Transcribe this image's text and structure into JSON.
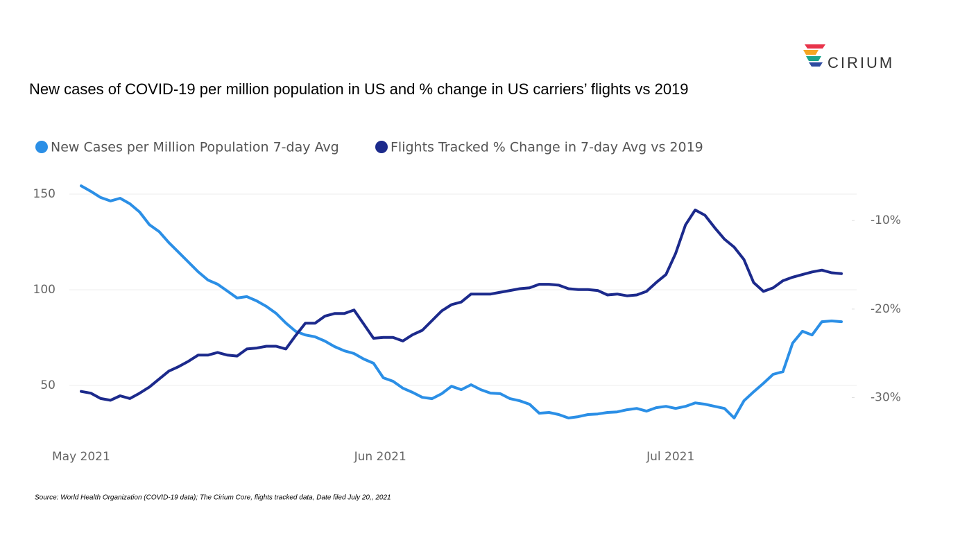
{
  "brand": "CIRIUM",
  "source": "Source: World Health Organization (COVID-19 data); The Cirium Core, flights tracked data, Date filed July 20,, 2021",
  "chart_data": {
    "type": "line",
    "title": "New cases of COVID-19 per million population in US and % change in US carriers’ flights vs 2019",
    "categories": [
      "May 2021",
      null,
      null,
      null,
      null,
      null,
      null,
      null,
      null,
      null,
      null,
      null,
      null,
      null,
      null,
      null,
      null,
      null,
      null,
      null,
      null,
      null,
      null,
      null,
      null,
      null,
      null,
      null,
      null,
      null,
      null,
      "Jun 2021",
      null,
      null,
      null,
      null,
      null,
      null,
      null,
      null,
      null,
      null,
      null,
      null,
      null,
      null,
      null,
      null,
      null,
      null,
      null,
      null,
      null,
      null,
      null,
      null,
      null,
      null,
      null,
      null,
      null,
      "Jul 2021",
      null,
      null,
      null,
      null,
      null,
      null,
      null,
      null,
      null,
      null,
      null,
      null,
      null,
      null,
      null,
      null,
      null
    ],
    "series": [
      {
        "name": "New Cases per Million Population 7-day Avg",
        "color": "#2b8fe6",
        "axis": "y",
        "values": [
          154.3,
          151.4,
          148.2,
          146.4,
          147.8,
          144.9,
          140.6,
          134,
          130.4,
          124.6,
          119.6,
          114.5,
          109.4,
          105.1,
          102.9,
          99.3,
          95.7,
          96.4,
          94.2,
          91.3,
          87.7,
          82.6,
          78.3,
          76.4,
          75.4,
          73.2,
          70.3,
          68.1,
          66.7,
          63.8,
          61.6,
          54,
          52.2,
          48.6,
          46.4,
          43.8,
          43.1,
          45.7,
          49.6,
          47.8,
          50.4,
          47.8,
          46,
          45.7,
          43.1,
          42,
          40.2,
          35.5,
          35.9,
          34.8,
          33,
          33.7,
          34.8,
          35.1,
          35.9,
          36.2,
          37.3,
          38,
          36.6,
          38.4,
          39.1,
          38,
          39.1,
          40.9,
          40.2,
          39.1,
          38,
          33,
          42,
          46.7,
          51.1,
          55.8,
          57.2,
          72.1,
          78.3,
          76.4,
          83.3,
          83.7,
          83.3
        ]
      },
      {
        "name": "Flights Tracked % Change in 7-day Avg vs 2019",
        "color": "#1c2a8c",
        "axis": "y2",
        "values": [
          -29.3,
          -29.5,
          -30.1,
          -30.3,
          -29.8,
          -30.1,
          -29.5,
          -28.8,
          -27.9,
          -27,
          -26.5,
          -25.9,
          -25.2,
          -25.2,
          -24.9,
          -25.2,
          -25.3,
          -24.5,
          -24.4,
          -24.2,
          -24.2,
          -24.5,
          -23,
          -21.6,
          -21.6,
          -20.8,
          -20.5,
          -20.5,
          -20.1,
          -21.7,
          -23.3,
          -23.2,
          -23.2,
          -23.6,
          -22.9,
          -22.4,
          -21.3,
          -20.2,
          -19.5,
          -19.2,
          -18.3,
          -18.3,
          -18.3,
          -18.1,
          -17.9,
          -17.7,
          -17.6,
          -17.2,
          -17.2,
          -17.3,
          -17.7,
          -17.8,
          -17.8,
          -17.9,
          -18.4,
          -18.3,
          -18.5,
          -18.4,
          -18,
          -17,
          -16.1,
          -13.7,
          -10.5,
          -8.8,
          -9.4,
          -10.8,
          -12.1,
          -13,
          -14.4,
          -17,
          -18,
          -17.6,
          -16.8,
          -16.4,
          -16.1,
          -15.8,
          -15.6,
          -15.9,
          -16
        ]
      }
    ],
    "ylim": [
      19.6,
      156.5
    ],
    "yticks": [
      50,
      100,
      150
    ],
    "y2lim": [
      -35.2,
      -5.6
    ],
    "y2ticks": [
      {
        "value": -30,
        "label": "-30%"
      },
      {
        "value": -20,
        "label": "-20%"
      },
      {
        "value": -10,
        "label": "-10%"
      }
    ],
    "grid": true,
    "legend": "top"
  }
}
